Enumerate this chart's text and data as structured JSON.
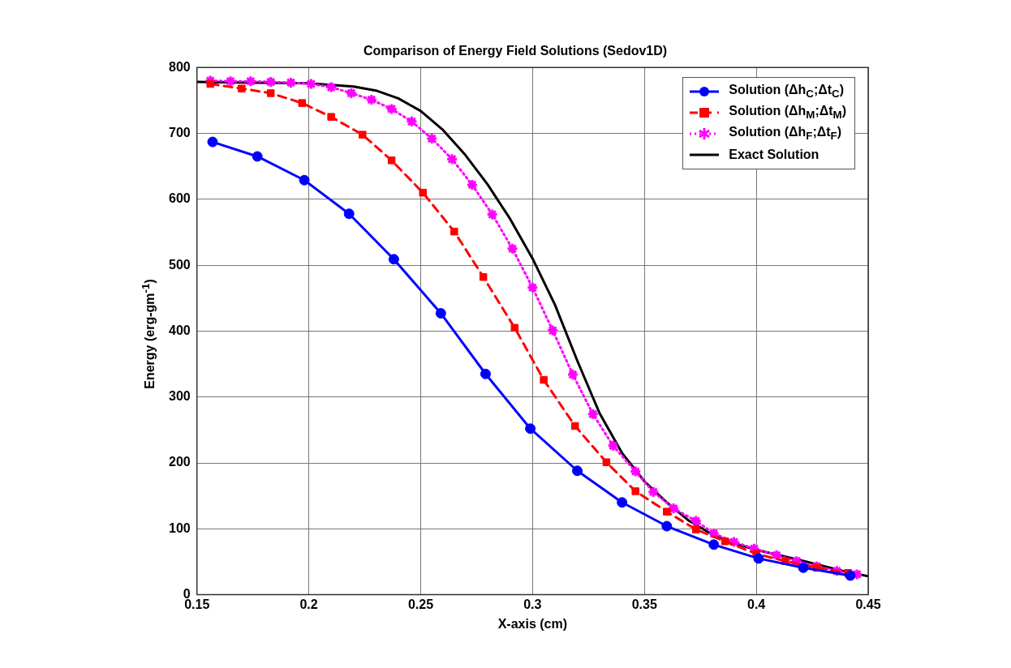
{
  "chart_data": {
    "type": "line",
    "title": "Comparison of Energy Field Solutions (Sedov1D)",
    "xlabel": "X-axis (cm)",
    "ylabel": "Energy (erg-gm$^{-1}$)",
    "xlim": [
      0.15,
      0.45
    ],
    "xticks": [
      0.15,
      0.2,
      0.25,
      0.3,
      0.35,
      0.4,
      0.45
    ],
    "ylim": [
      0,
      800
    ],
    "yticks": [
      0,
      100,
      200,
      300,
      400,
      500,
      600,
      700,
      800
    ],
    "grid": true,
    "legend": "top right",
    "series": [
      {
        "name": "Solution (Δh$_{C}$;Δt$_{C}$)",
        "color": "#0000ff",
        "marker": "circle",
        "line_style": "solid",
        "x": [
          0.157,
          0.177,
          0.198,
          0.218,
          0.238,
          0.259,
          0.279,
          0.299,
          0.32,
          0.34,
          0.36,
          0.381,
          0.401,
          0.421,
          0.442
        ],
        "values": [
          687,
          665,
          629,
          578,
          509,
          427,
          335,
          252,
          188,
          140,
          104,
          76,
          55,
          41,
          29
        ]
      },
      {
        "name": "Solution (Δh$_{M}$;Δt$_{M}$)",
        "color": "#ff0000",
        "marker": "square",
        "line_style": "dashed",
        "x": [
          0.156,
          0.17,
          0.183,
          0.197,
          0.21,
          0.224,
          0.237,
          0.251,
          0.265,
          0.278,
          0.292,
          0.305,
          0.319,
          0.333,
          0.346,
          0.36,
          0.373,
          0.386,
          0.4,
          0.413,
          0.427,
          0.441
        ],
        "values": [
          775,
          768,
          761,
          746,
          725,
          698,
          659,
          610,
          551,
          482,
          405,
          326,
          256,
          201,
          157,
          126,
          99,
          81,
          62,
          51,
          41,
          33
        ]
      },
      {
        "name": "Solution (Δh$_{F}$;Δt$_{F}$)",
        "color": "#ff00ff",
        "marker": "cross",
        "line_style": "dotted",
        "x": [
          0.156,
          0.165,
          0.174,
          0.183,
          0.192,
          0.201,
          0.21,
          0.219,
          0.228,
          0.237,
          0.246,
          0.255,
          0.264,
          0.273,
          0.282,
          0.291,
          0.3,
          0.309,
          0.318,
          0.327,
          0.336,
          0.346,
          0.354,
          0.363,
          0.373,
          0.381,
          0.39,
          0.399,
          0.409,
          0.418,
          0.427,
          0.436,
          0.445
        ],
        "values": [
          780,
          779,
          779,
          778,
          777,
          775,
          770,
          761,
          751,
          737,
          718,
          692,
          661,
          622,
          577,
          525,
          466,
          401,
          334,
          274,
          226,
          187,
          156,
          131,
          112,
          93,
          80,
          70,
          60,
          51,
          43,
          36,
          31
        ]
      },
      {
        "name": "Exact Solution",
        "color": "#000000",
        "marker": "none",
        "line_style": "solid",
        "x": [
          0.15,
          0.2,
          0.22,
          0.23,
          0.24,
          0.25,
          0.26,
          0.27,
          0.28,
          0.29,
          0.3,
          0.31,
          0.32,
          0.33,
          0.34,
          0.35,
          0.36,
          0.37,
          0.38,
          0.39,
          0.4,
          0.42,
          0.44,
          0.45
        ],
        "values": [
          778,
          776,
          771,
          765,
          753,
          734,
          705,
          667,
          622,
          570,
          510,
          440,
          355,
          275,
          215,
          172,
          140,
          112,
          92,
          78,
          68,
          52,
          35,
          28
        ]
      }
    ]
  }
}
